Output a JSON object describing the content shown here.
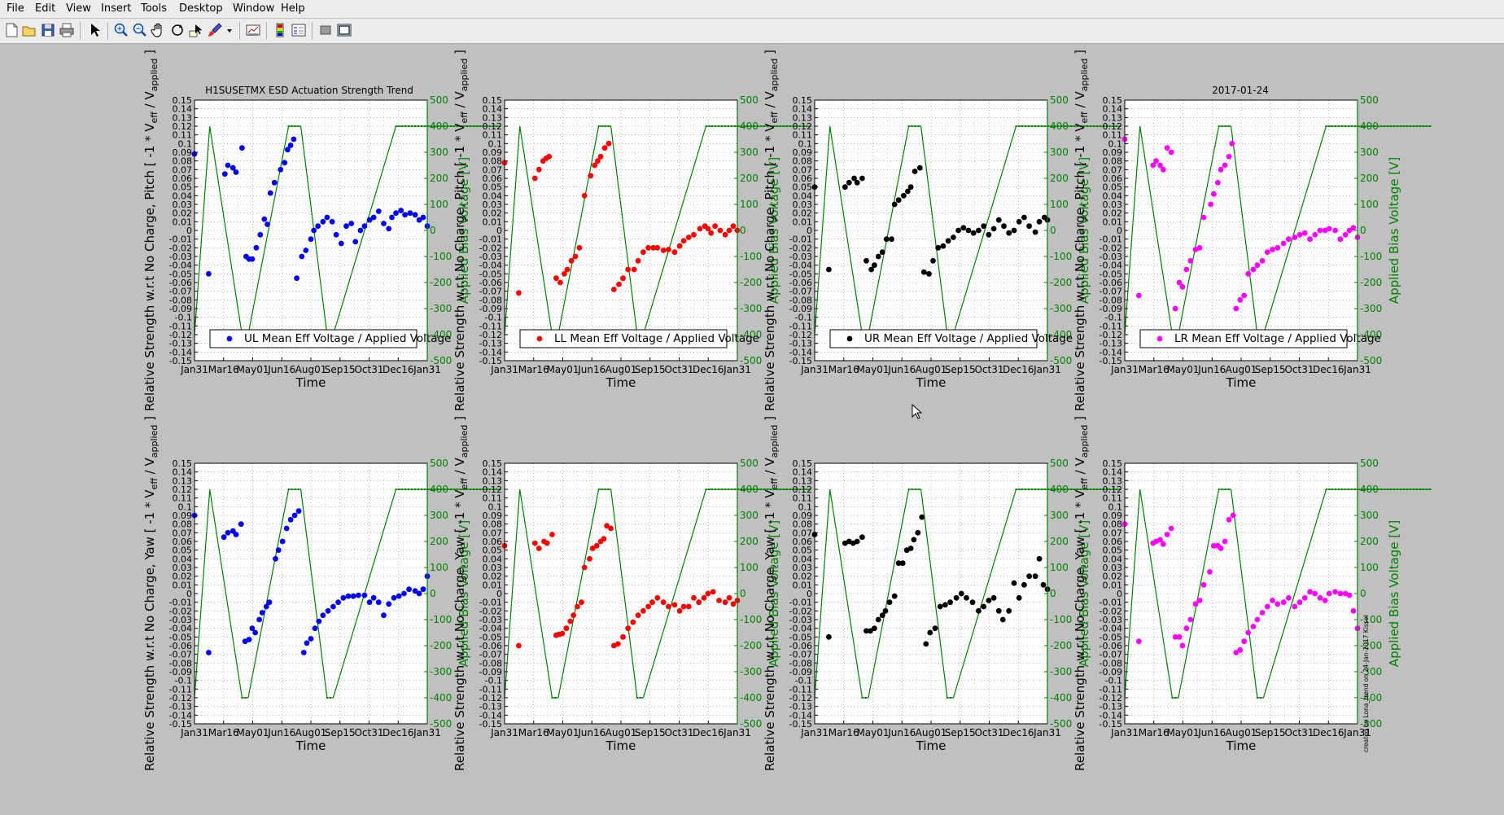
{
  "menu": [
    "File",
    "Edit",
    "View",
    "Insert",
    "Tools",
    "Desktop",
    "Window",
    "Help"
  ],
  "toolbar_icons": [
    "new-figure-icon",
    "open-file-icon",
    "save-icon",
    "print-icon",
    "arrow-pointer-icon",
    "zoom-in-icon",
    "zoom-out-icon",
    "pan-hand-icon",
    "rotate-3d-icon",
    "data-cursor-icon",
    "brush-icon",
    "brush-dropdown-icon",
    "link-plot-icon",
    "colorbar-icon",
    "legend-icon",
    "hide-plot-tools-icon",
    "show-plot-tools-icon"
  ],
  "figure": {
    "top_left_title": "H1SUSETMX ESD Actuation Strength Trend",
    "top_right_title": "2017-01-24",
    "credit": "created by Lona_trend on 24-Jan-2017 Kissel",
    "colors": {
      "UL": "#0000ff",
      "LL": "#ff0000",
      "UR": "#000000",
      "LR": "#ff00ff",
      "bias": "#008000"
    }
  },
  "axes_text": {
    "xlabel": "Time",
    "right_ylabel": "Applied Bias Voltage [V]",
    "top_left_ylabel": "Relative Strength w.r.t No Charge, Pitch [ -1 * V",
    "bottom_left_ylabel": "Relative Strength w.r.t No Charge, Yaw [ -1 * V",
    "ylabel_sub1": "eff",
    "ylabel_mid": " / V",
    "ylabel_sub2": "applied",
    "ylabel_end": " ]"
  },
  "chart_data": {
    "type": "scatter",
    "x_ticks": [
      "Jan31",
      "Mar16",
      "May01",
      "Jun16",
      "Aug01",
      "Sep15",
      "Oct31",
      "Dec16",
      "Jan31"
    ],
    "y_left_ticks": [
      "0.15",
      "0.14",
      "0.13",
      "0.12",
      "0.11",
      "0.1",
      "0.09",
      "0.08",
      "0.07",
      "0.06",
      "0.05",
      "0.04",
      "0.03",
      "0.02",
      "0.01",
      "0",
      "-0.01",
      "-0.02",
      "-0.03",
      "-0.04",
      "-0.05",
      "-0.06",
      "-0.07",
      "-0.08",
      "-0.09",
      "-0.1",
      "-0.11",
      "-0.12",
      "-0.13",
      "-0.14",
      "-0.15"
    ],
    "y_right_ticks": [
      "500",
      "400",
      "300",
      "200",
      "100",
      "0",
      "-100",
      "-200",
      "-300",
      "-400",
      "-500"
    ],
    "ylim_left": [
      -0.15,
      0.15
    ],
    "ylim_right": [
      -500,
      500
    ],
    "grid": true,
    "legend_position": "bottom",
    "bias_voltage": {
      "x": [
        0,
        15,
        47,
        53,
        93,
        105,
        131,
        137,
        199,
        205,
        303
      ],
      "y": [
        -400,
        400,
        -400,
        -400,
        400,
        400,
        -400,
        -400,
        400,
        400,
        400
      ]
    },
    "panels": [
      {
        "quadrant": "UL",
        "dof": "Pitch",
        "legend": "UL Mean Eff Voltage / Applied Voltage",
        "x": [
          0,
          14,
          30,
          33,
          38,
          41,
          47,
          51,
          54,
          57,
          61,
          65,
          69,
          72,
          75,
          79,
          85,
          89,
          92,
          95,
          98,
          101,
          106,
          110,
          115,
          118,
          122,
          127,
          131,
          136,
          140,
          145,
          150,
          155,
          159,
          164,
          168,
          173,
          177,
          182,
          187,
          192,
          195,
          199,
          204,
          208,
          213,
          218,
          222,
          226,
          230
        ],
        "y": [
          0.088,
          -0.05,
          0.065,
          0.075,
          0.072,
          0.067,
          0.095,
          -0.03,
          -0.033,
          -0.033,
          -0.02,
          -0.005,
          0.013,
          0.007,
          0.043,
          0.055,
          0.07,
          0.078,
          0.093,
          0.098,
          0.105,
          -0.055,
          -0.03,
          -0.023,
          -0.01,
          0,
          0.005,
          0.01,
          0.015,
          0.01,
          -0.005,
          -0.015,
          0.005,
          0.008,
          -0.013,
          0,
          0.005,
          0.012,
          0.015,
          0.022,
          0.008,
          0.002,
          0.015,
          0.02,
          0.023,
          0.018,
          0.02,
          0.018,
          0.012,
          0.015,
          0.005
        ]
      },
      {
        "quadrant": "LL",
        "dof": "Pitch",
        "legend": "LL Mean Eff Voltage / Applied Voltage",
        "x": [
          0,
          14,
          30,
          34,
          38,
          41,
          44,
          51,
          55,
          59,
          62,
          66,
          70,
          74,
          79,
          85,
          89,
          92,
          95,
          99,
          103,
          108,
          113,
          117,
          122,
          128,
          132,
          137,
          142,
          147,
          151,
          157,
          162,
          168,
          173,
          177,
          182,
          187,
          193,
          198,
          201,
          204,
          208,
          213,
          218,
          222,
          226,
          230
        ],
        "y": [
          0.078,
          -0.072,
          0.06,
          0.07,
          0.08,
          0.083,
          0.085,
          -0.055,
          -0.06,
          -0.05,
          -0.045,
          -0.035,
          -0.03,
          -0.02,
          0.04,
          0.063,
          0.075,
          0.08,
          0.085,
          0.095,
          0.1,
          -0.068,
          -0.062,
          -0.055,
          -0.045,
          -0.045,
          -0.035,
          -0.025,
          -0.02,
          -0.02,
          -0.02,
          -0.023,
          -0.022,
          -0.025,
          -0.018,
          -0.012,
          -0.008,
          -0.005,
          0.002,
          0.005,
          0.002,
          -0.003,
          0.005,
          0,
          -0.005,
          0,
          0.005,
          0
        ]
      },
      {
        "quadrant": "UR",
        "dof": "Pitch",
        "legend": "UR Mean Eff Voltage / Applied Voltage",
        "x": [
          0,
          14,
          30,
          34,
          39,
          42,
          47,
          51,
          56,
          59,
          63,
          67,
          71,
          76,
          79,
          83,
          88,
          92,
          95,
          99,
          104,
          108,
          113,
          117,
          122,
          127,
          132,
          137,
          142,
          147,
          152,
          157,
          162,
          167,
          172,
          177,
          182,
          187,
          192,
          197,
          202,
          207,
          212,
          218,
          222,
          227,
          230
        ],
        "y": [
          0.05,
          -0.045,
          0.05,
          0.055,
          0.06,
          0.055,
          0.06,
          -0.035,
          -0.045,
          -0.04,
          -0.03,
          -0.025,
          -0.01,
          -0.01,
          0.03,
          0.035,
          0.04,
          0.045,
          0.05,
          0.068,
          0.072,
          -0.048,
          -0.05,
          -0.035,
          -0.02,
          -0.018,
          -0.012,
          -0.008,
          0,
          0.003,
          0,
          -0.003,
          0,
          0.005,
          -0.005,
          0.002,
          0.012,
          0.005,
          -0.003,
          0,
          0.01,
          0.015,
          0.005,
          -0.002,
          0.01,
          0.015,
          0.012
        ]
      },
      {
        "quadrant": "LR",
        "dof": "Pitch",
        "legend": "LR Mean Eff Voltage / Applied Voltage",
        "x": [
          0,
          14,
          28,
          31,
          35,
          38,
          42,
          46,
          50,
          54,
          57,
          61,
          65,
          70,
          74,
          78,
          85,
          88,
          92,
          95,
          99,
          103,
          106,
          110,
          114,
          118,
          122,
          127,
          131,
          136,
          141,
          146,
          151,
          157,
          162,
          168,
          173,
          178,
          183,
          188,
          193,
          198,
          202,
          208,
          213,
          218,
          222,
          226,
          230
        ],
        "y": [
          0.105,
          -0.075,
          0.075,
          0.08,
          0.075,
          0.07,
          0.095,
          0.09,
          -0.09,
          -0.06,
          -0.065,
          -0.045,
          -0.035,
          -0.022,
          -0.02,
          0.015,
          0.03,
          0.042,
          0.055,
          0.07,
          0.075,
          0.085,
          0.1,
          -0.09,
          -0.08,
          -0.075,
          -0.05,
          -0.045,
          -0.04,
          -0.035,
          -0.025,
          -0.022,
          -0.02,
          -0.015,
          -0.01,
          -0.008,
          -0.005,
          -0.003,
          -0.01,
          -0.005,
          0,
          0,
          0.002,
          0,
          -0.01,
          -0.005,
          0,
          0.003,
          -0.008
        ]
      },
      {
        "quadrant": "UL",
        "dof": "Yaw",
        "legend": "",
        "x": [
          0,
          14,
          29,
          33,
          38,
          41,
          46,
          50,
          54,
          57,
          60,
          64,
          67,
          71,
          74,
          80,
          83,
          87,
          91,
          95,
          99,
          103,
          108,
          111,
          115,
          119,
          123,
          127,
          132,
          137,
          142,
          147,
          152,
          157,
          162,
          168,
          173,
          177,
          182,
          187,
          192,
          197,
          202,
          207,
          212,
          218,
          222,
          226,
          230
        ],
        "y": [
          0.09,
          -0.068,
          0.065,
          0.07,
          0.072,
          0.068,
          0.08,
          -0.055,
          -0.053,
          -0.04,
          -0.045,
          -0.03,
          -0.022,
          -0.015,
          -0.01,
          0.04,
          0.05,
          0.06,
          0.075,
          0.085,
          0.09,
          0.095,
          -0.068,
          -0.057,
          -0.052,
          -0.04,
          -0.032,
          -0.025,
          -0.02,
          -0.015,
          -0.01,
          -0.005,
          -0.003,
          -0.003,
          -0.002,
          -0.002,
          -0.01,
          -0.005,
          -0.01,
          -0.025,
          -0.012,
          -0.005,
          -0.003,
          0,
          0.005,
          0.003,
          0,
          0.005,
          0.02
        ]
      },
      {
        "quadrant": "LL",
        "dof": "Yaw",
        "legend": "",
        "x": [
          0,
          14,
          30,
          34,
          39,
          42,
          47,
          51,
          54,
          57,
          61,
          65,
          68,
          72,
          76,
          79,
          84,
          87,
          91,
          95,
          98,
          101,
          105,
          108,
          112,
          117,
          122,
          127,
          132,
          137,
          142,
          146,
          151,
          157,
          162,
          168,
          173,
          177,
          182,
          187,
          192,
          197,
          201,
          206,
          212,
          218,
          222,
          226,
          230
        ],
        "y": [
          0.055,
          -0.06,
          0.058,
          0.052,
          0.06,
          0.058,
          0.068,
          -0.048,
          -0.047,
          -0.046,
          -0.04,
          -0.032,
          -0.025,
          -0.015,
          -0.01,
          0.03,
          0.04,
          0.052,
          0.055,
          0.06,
          0.063,
          0.078,
          0.075,
          -0.06,
          -0.058,
          -0.05,
          -0.04,
          -0.033,
          -0.025,
          -0.02,
          -0.015,
          -0.01,
          -0.005,
          -0.01,
          -0.015,
          -0.013,
          -0.02,
          -0.015,
          -0.015,
          -0.005,
          -0.01,
          -0.005,
          0,
          0.002,
          -0.008,
          -0.01,
          -0.005,
          -0.012,
          -0.008
        ]
      },
      {
        "quadrant": "UR",
        "dof": "Yaw",
        "legend": "",
        "x": [
          0,
          14,
          30,
          34,
          38,
          42,
          47,
          51,
          55,
          59,
          63,
          67,
          70,
          74,
          79,
          83,
          87,
          91,
          95,
          98,
          102,
          106,
          110,
          114,
          119,
          124,
          129,
          134,
          140,
          145,
          150,
          156,
          162,
          167,
          172,
          177,
          182,
          186,
          192,
          197,
          202,
          207,
          212,
          218,
          222,
          226,
          230
        ],
        "y": [
          0.068,
          -0.05,
          0.058,
          0.06,
          0.058,
          0.06,
          0.065,
          -0.043,
          -0.043,
          -0.04,
          -0.03,
          -0.025,
          -0.02,
          -0.01,
          -0.003,
          0.035,
          0.035,
          0.05,
          0.052,
          0.062,
          0.07,
          0.088,
          -0.058,
          -0.045,
          -0.04,
          -0.015,
          -0.013,
          -0.01,
          -0.005,
          0,
          -0.005,
          -0.01,
          -0.02,
          -0.015,
          -0.008,
          -0.005,
          -0.02,
          -0.03,
          -0.02,
          0.012,
          -0.005,
          0.01,
          0.02,
          0.02,
          0.04,
          0.01,
          0.005
        ]
      },
      {
        "quadrant": "LR",
        "dof": "Yaw",
        "legend": "",
        "x": [
          0,
          14,
          28,
          31,
          35,
          38,
          42,
          46,
          50,
          54,
          57,
          61,
          65,
          70,
          74,
          78,
          84,
          88,
          92,
          95,
          99,
          103,
          107,
          110,
          114,
          118,
          122,
          127,
          131,
          136,
          141,
          146,
          151,
          157,
          162,
          168,
          173,
          178,
          183,
          188,
          193,
          198,
          202,
          208,
          213,
          218,
          222,
          226,
          230
        ],
        "y": [
          0.08,
          -0.055,
          0.058,
          0.06,
          0.062,
          0.057,
          0.068,
          0.075,
          -0.05,
          -0.05,
          -0.06,
          -0.04,
          -0.03,
          -0.012,
          -0.008,
          0.01,
          0.025,
          0.055,
          0.055,
          0.052,
          0.06,
          0.085,
          0.09,
          -0.068,
          -0.065,
          -0.055,
          -0.045,
          -0.038,
          -0.03,
          -0.022,
          -0.015,
          -0.008,
          -0.012,
          -0.01,
          -0.005,
          -0.015,
          -0.01,
          -0.005,
          0.002,
          0,
          -0.005,
          -0.008,
          0,
          0.002,
          0,
          0,
          -0.002,
          -0.02,
          -0.04
        ]
      }
    ]
  }
}
